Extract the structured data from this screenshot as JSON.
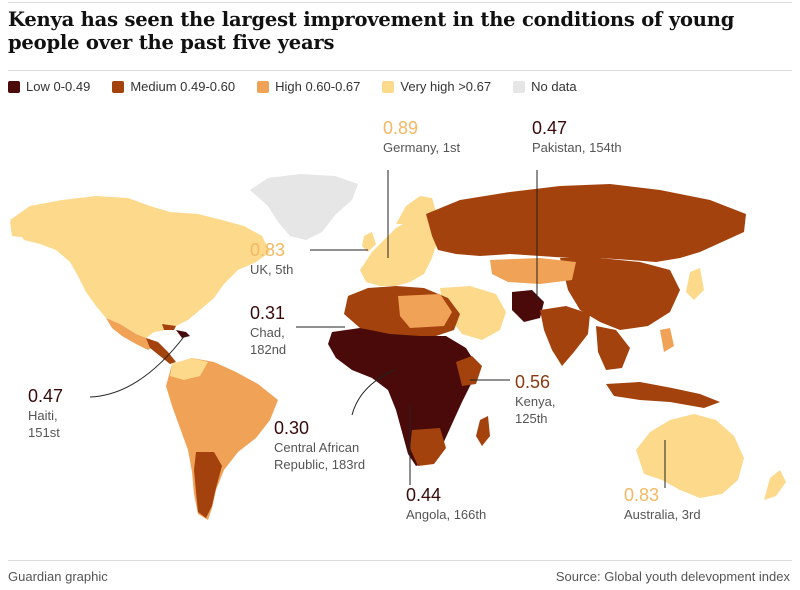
{
  "title": "Kenya has seen the largest improvement in the conditions of young people over the past five years",
  "legend": [
    {
      "label": "Low 0-0.49",
      "color": "#4a0a0a"
    },
    {
      "label": "Medium 0.49-0.60",
      "color": "#a3420d"
    },
    {
      "label": "High 0.60-0.67",
      "color": "#f0a257"
    },
    {
      "label": "Very high >0.67",
      "color": "#fdd98c"
    },
    {
      "label": "No data",
      "color": "#e6e6e6"
    }
  ],
  "annotations": {
    "germany": {
      "value": "0.89",
      "label": "Germany, 1st",
      "color": "#f4b860"
    },
    "pakistan": {
      "value": "0.47",
      "label": "Pakistan, 154th",
      "color": "#3a0a0a"
    },
    "uk": {
      "value": "0.83",
      "label": "UK, 5th",
      "color": "#f4b860"
    },
    "chad": {
      "value": "0.31",
      "label1": "Chad,",
      "label2": "182nd",
      "color": "#3a0a0a"
    },
    "haiti": {
      "value": "0.47",
      "label1": "Haiti,",
      "label2": "151st",
      "color": "#3a0a0a"
    },
    "car": {
      "value": "0.30",
      "label1": "Central African",
      "label2": "Republic, 183rd",
      "color": "#3a0a0a"
    },
    "kenya": {
      "value": "0.56",
      "label1": "Kenya,",
      "label2": "125th",
      "color": "#8a3a10"
    },
    "angola": {
      "value": "0.44",
      "label": "Angola, 166th",
      "color": "#3a0a0a"
    },
    "australia": {
      "value": "0.83",
      "label": "Australia, 3rd",
      "color": "#f4b860"
    }
  },
  "footer": {
    "credit": "Guardian graphic",
    "source": "Source: Global youth delevopment index"
  }
}
